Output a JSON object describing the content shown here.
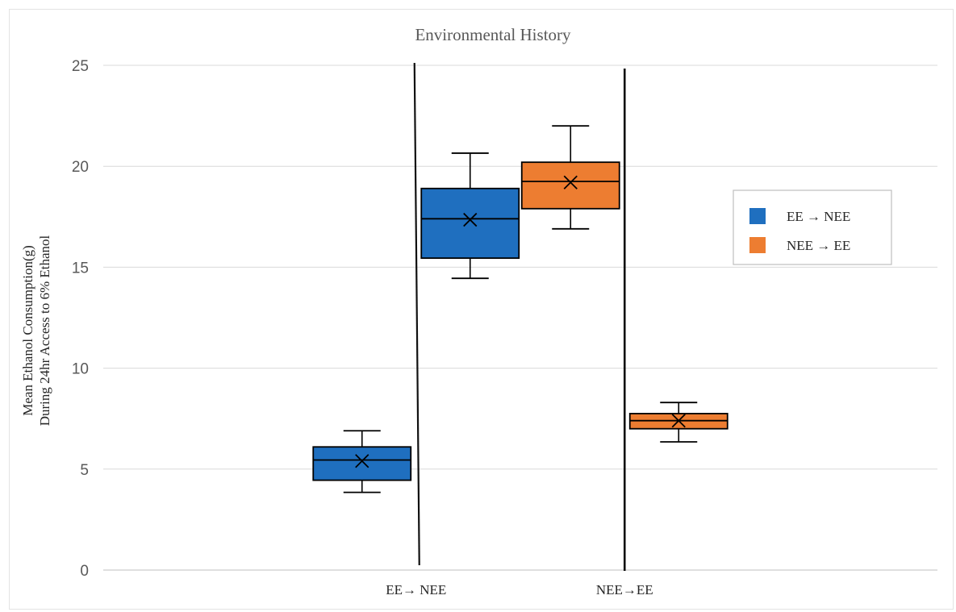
{
  "chart_data": {
    "type": "box",
    "title": "Environmental History",
    "ylabel_lines": [
      "Mean Ethanol Consumption(g)",
      "During 24hr Access to 6% Ethanol"
    ],
    "xlabel": "",
    "ylim": [
      0,
      25
    ],
    "yticks": [
      0,
      5,
      10,
      15,
      20,
      25
    ],
    "grid": true,
    "categories": [
      "EE→ NEE",
      "NEE→EE"
    ],
    "legend": {
      "placement": "right",
      "entries": [
        {
          "label": "EE → NEE",
          "color": "#1f6fbf"
        },
        {
          "label": "NEE → EE",
          "color": "#ed7d31"
        }
      ]
    },
    "boxes": [
      {
        "series": "EE → NEE",
        "category_index": 0,
        "slot": 0,
        "min": 3.85,
        "q1": 4.45,
        "median": 5.45,
        "q3": 6.1,
        "max": 6.9,
        "mean": 5.4
      },
      {
        "series": "EE → NEE",
        "category_index": 0,
        "slot": 1,
        "min": 14.45,
        "q1": 15.45,
        "median": 17.4,
        "q3": 18.9,
        "max": 20.65,
        "mean": 17.35
      },
      {
        "series": "NEE → EE",
        "category_index": 1,
        "slot": 0,
        "min": 16.9,
        "q1": 17.9,
        "median": 19.25,
        "q3": 20.2,
        "max": 22.0,
        "mean": 19.2
      },
      {
        "series": "NEE → EE",
        "category_index": 1,
        "slot": 1,
        "min": 6.35,
        "q1": 7.0,
        "median": 7.4,
        "q3": 7.75,
        "max": 8.3,
        "mean": 7.4
      }
    ],
    "colors": {
      "blue": "#1f6fbf",
      "orange": "#ed7d31",
      "grid": "#d9d9d9",
      "outline": "#000000"
    }
  }
}
